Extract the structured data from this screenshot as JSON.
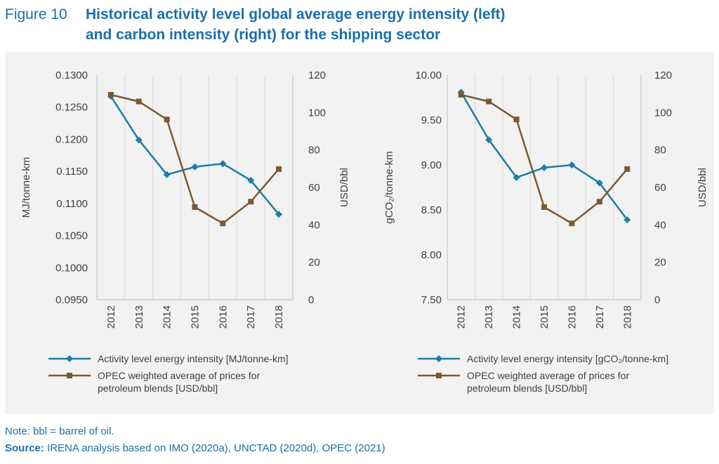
{
  "header": {
    "figure_number": "Figure 10",
    "title_line1": "Historical activity level global average energy intensity (left)",
    "title_line2": "and carbon intensity (right) for the shipping sector"
  },
  "colors": {
    "accent": "#1b6fa8",
    "series_blue": "#1f7ea3",
    "series_brown": "#7a5a33",
    "panel_bg": "#f2f2f2"
  },
  "chart_data": [
    {
      "type": "line",
      "x": [
        "2012",
        "2013",
        "2014",
        "2015",
        "2016",
        "2017",
        "2018"
      ],
      "ylabel": "MJ/tonne-km",
      "ylim": [
        0.095,
        0.13
      ],
      "yticks": [
        "0.1300",
        "0.1250",
        "0.1200",
        "0.1150",
        "0.1100",
        "0.1050",
        "0.1000",
        "0.0950"
      ],
      "y2label": "USD/bbl",
      "y2lim": [
        0,
        120
      ],
      "y2ticks": [
        "120",
        "100",
        "80",
        "60",
        "40",
        "20",
        "0"
      ],
      "grid": "vertical",
      "series": [
        {
          "name": "Activity level energy intensity [MJ/tonne-km]",
          "axis": "left",
          "marker": "diamond",
          "color": "#1f7ea3",
          "values": [
            0.1267,
            0.1199,
            0.1145,
            0.1157,
            0.1162,
            0.1136,
            0.1083
          ]
        },
        {
          "name": "OPEC weighted average of prices for petroleum blends [USD/bbl]",
          "axis": "right",
          "marker": "square",
          "color": "#7a5a33",
          "values": [
            109.5,
            105.9,
            96.3,
            49.5,
            40.8,
            52.4,
            69.8
          ]
        }
      ],
      "legend": [
        "Activity level energy intensity [MJ/tonne-km]",
        "OPEC weighted average of prices for",
        "petroleum blends [USD/bbl]"
      ]
    },
    {
      "type": "line",
      "x": [
        "2012",
        "2013",
        "2014",
        "2015",
        "2016",
        "2017",
        "2018"
      ],
      "ylabel": "gCO₂/tonne-km",
      "ylim": [
        7.5,
        10
      ],
      "yticks": [
        "10.00",
        "9.50",
        "9.00",
        "8.50",
        "8.00",
        "7.50"
      ],
      "y2label": "USD/bbl",
      "y2lim": [
        0,
        120
      ],
      "y2ticks": [
        "120",
        "100",
        "80",
        "60",
        "40",
        "20",
        "0"
      ],
      "grid": "vertical",
      "series": [
        {
          "name": "Activity level energy intensity [gCO₂/tonne-km]",
          "axis": "left",
          "marker": "diamond",
          "color": "#1f7ea3",
          "values": [
            9.81,
            9.28,
            8.86,
            8.97,
            9.0,
            8.8,
            8.39
          ]
        },
        {
          "name": "OPEC weighted average of prices for petroleum blends [USD/bbl]",
          "axis": "right",
          "marker": "square",
          "color": "#7a5a33",
          "values": [
            109.5,
            105.9,
            96.3,
            49.5,
            40.8,
            52.4,
            69.8
          ]
        }
      ],
      "legend": [
        "Activity level energy intensity [gCO₂/tonne-km]",
        "OPEC weighted average of prices for",
        "petroleum blends [USD/bbl]"
      ]
    }
  ],
  "notes": {
    "note": "Note: bbl = barrel of oil.",
    "source_label": "Source:",
    "source_text": " IRENA analysis based on IMO (2020a), UNCTAD (2020d), OPEC (2021)"
  }
}
